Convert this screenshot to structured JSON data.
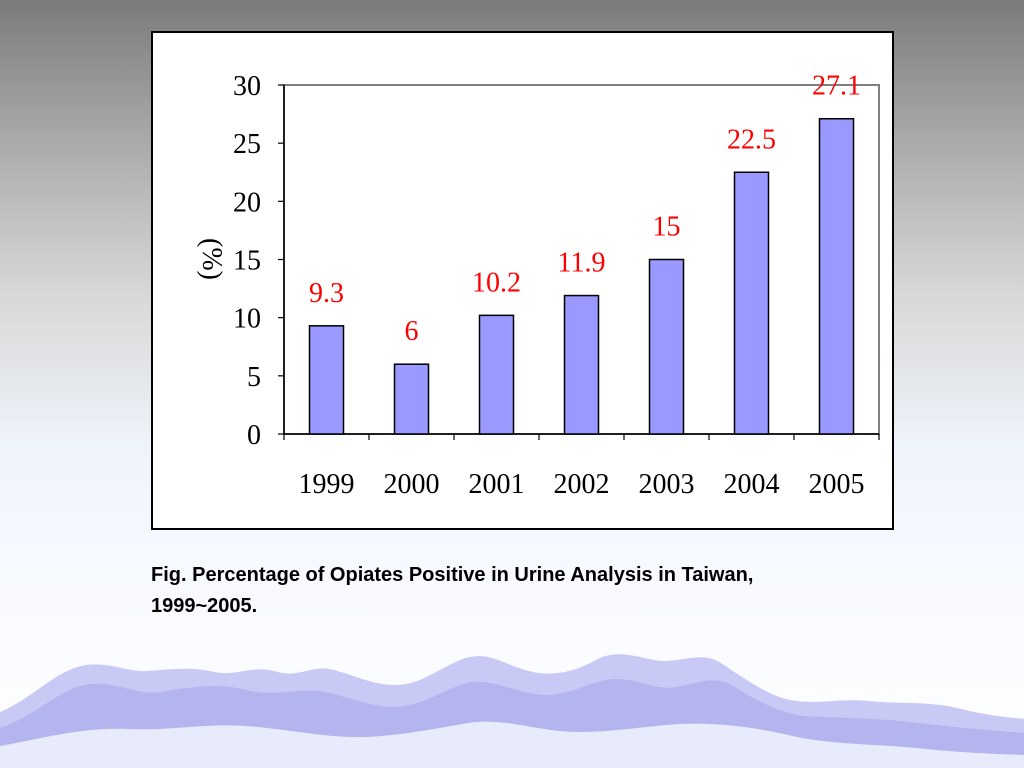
{
  "chart_data": {
    "type": "bar",
    "categories": [
      "1999",
      "2000",
      "2001",
      "2002",
      "2003",
      "2004",
      "2005"
    ],
    "values": [
      9.3,
      6,
      10.2,
      11.9,
      15,
      22.5,
      27.1
    ],
    "data_labels": [
      "9.3",
      "6",
      "10.2",
      "11.9",
      "15",
      "22.5",
      "27.1"
    ],
    "ylabel": "(%)",
    "ylim": [
      0,
      30
    ],
    "yticks": [
      "0",
      "5",
      "10",
      "15",
      "20",
      "25",
      "30"
    ],
    "colors": {
      "bar_fill": "#9999ff",
      "bar_stroke": "#000000",
      "data_label": "#ff0000",
      "text": "#000000"
    },
    "grid": false,
    "legend": "none"
  },
  "caption": "Fig.   Percentage of Opiates Positive in Urine Analysis in Taiwan,\n1999~2005."
}
